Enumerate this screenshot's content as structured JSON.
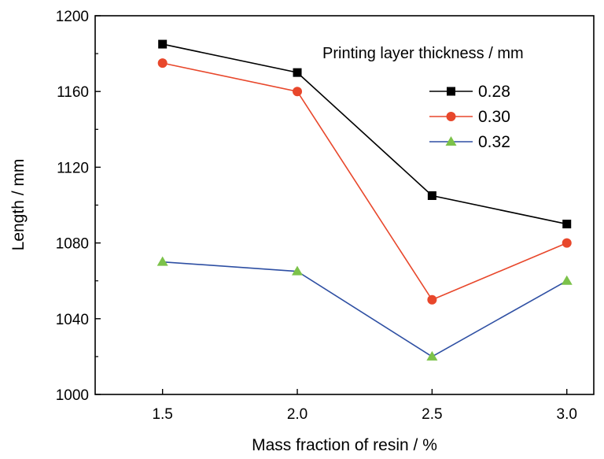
{
  "chart_data": {
    "type": "line",
    "xlabel": "Mass fraction of resin / %",
    "ylabel": "Length / mm",
    "x": [
      1.5,
      2.0,
      2.5,
      3.0
    ],
    "x_tick_labels": [
      "1.5",
      "2.0",
      "2.5",
      "3.0"
    ],
    "xlim": [
      1.25,
      3.1
    ],
    "ylim": [
      1000,
      1200
    ],
    "y_ticks": [
      1000,
      1040,
      1080,
      1120,
      1160,
      1200
    ],
    "y_tick_labels": [
      "1000",
      "1040",
      "1080",
      "1120",
      "1160",
      "1200"
    ],
    "legend_title": "Printing layer thickness / mm",
    "legend_position": "top-right",
    "grid": false,
    "series": [
      {
        "name": "0.28",
        "values": [
          1185,
          1170,
          1105,
          1090
        ],
        "line_color": "#000000",
        "marker": "square",
        "marker_color": "#000000"
      },
      {
        "name": "0.30",
        "values": [
          1175,
          1160,
          1050,
          1080
        ],
        "line_color": "#e8472b",
        "marker": "circle",
        "marker_color": "#e8472b"
      },
      {
        "name": "0.32",
        "values": [
          1070,
          1065,
          1020,
          1060
        ],
        "line_color": "#2e4fa3",
        "marker": "triangle",
        "marker_color": "#7cc24a"
      }
    ]
  }
}
